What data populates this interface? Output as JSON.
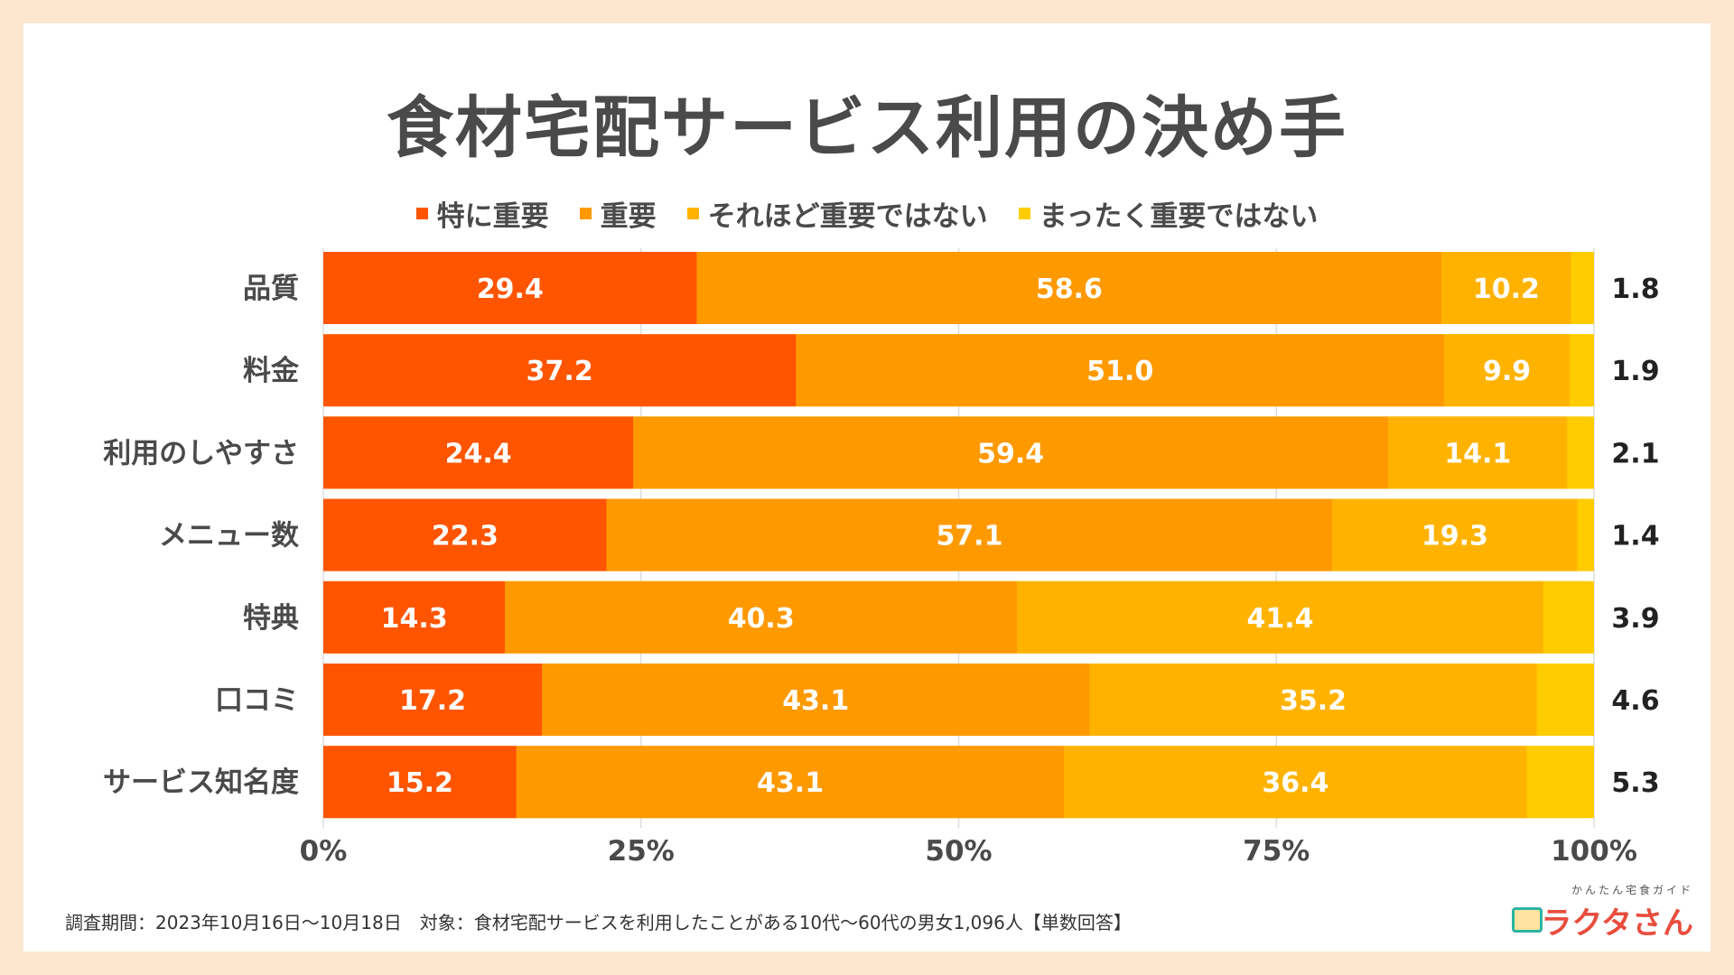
{
  "chart_data": {
    "type": "bar",
    "orientation": "horizontal",
    "stacked": true,
    "title": "食材宅配サービス利用の決め手",
    "categories": [
      "品質",
      "料金",
      "利用のしやすさ",
      "メニュー数",
      "特典",
      "口コミ",
      "サービス知名度"
    ],
    "series": [
      {
        "name": "特に重要",
        "color": "#ff5500",
        "values": [
          29.4,
          37.2,
          24.4,
          22.3,
          14.3,
          17.2,
          15.2
        ]
      },
      {
        "name": "重要",
        "color": "#ff9900",
        "values": [
          58.6,
          51.0,
          59.4,
          57.1,
          40.3,
          43.1,
          43.1
        ]
      },
      {
        "name": "それほど重要ではない",
        "color": "#ffb300",
        "values": [
          10.2,
          9.9,
          14.1,
          19.3,
          41.4,
          35.2,
          36.4
        ]
      },
      {
        "name": "まったく重要ではない",
        "color": "#ffcc00",
        "values": [
          1.8,
          1.9,
          2.1,
          1.4,
          3.9,
          4.6,
          5.3
        ]
      }
    ],
    "value_labels": [
      [
        "29.4",
        "37.2",
        "24.4",
        "22.3",
        "14.3",
        "17.2",
        "15.2"
      ],
      [
        "58.6",
        "51.0",
        "59.4",
        "57.1",
        "40.3",
        "43.1",
        "43.1"
      ],
      [
        "10.2",
        "9.9",
        "14.1",
        "19.3",
        "41.4",
        "35.2",
        "36.4"
      ],
      [
        "1.8",
        "1.9",
        "2.1",
        "1.4",
        "3.9",
        "4.6",
        "5.3"
      ]
    ],
    "xlim": [
      0,
      100
    ],
    "xticks": [
      0,
      25,
      50,
      75,
      100
    ],
    "xtick_labels": [
      "0%",
      "25%",
      "50%",
      "75%",
      "100%"
    ],
    "grid": true,
    "legend_position": "top"
  },
  "footer": "調査期間：2023年10月16日〜10月18日　対象：食材宅配サービスを利用したことがある10代〜60代の男女1,096人【単数回答】",
  "brand": {
    "tagline": "かんたん宅食ガイド",
    "name": "ラクタさん"
  },
  "colors": {
    "background": "#fde8cf",
    "text": "#4a4a4a",
    "grid": "#dddddd"
  }
}
